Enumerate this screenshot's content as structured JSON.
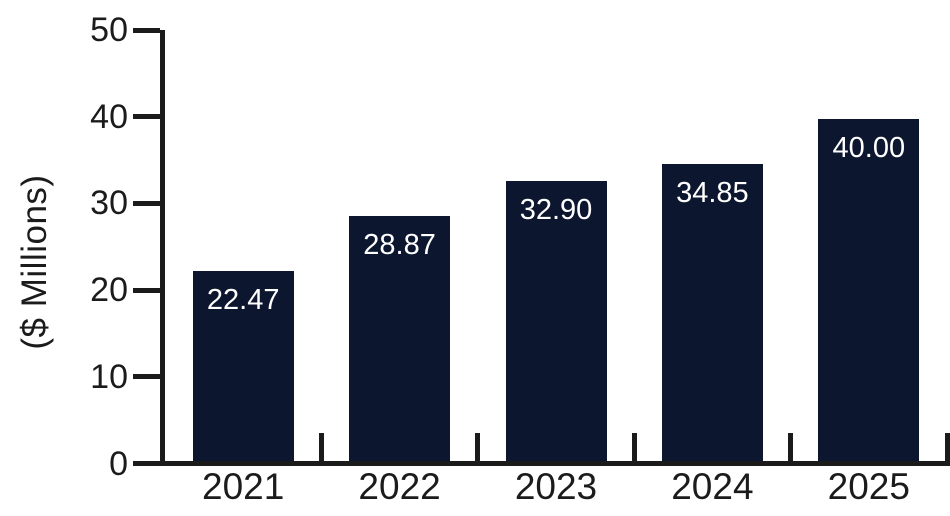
{
  "chart_data": {
    "type": "bar",
    "title": "",
    "categories": [
      "2021",
      "2022",
      "2023",
      "2024",
      "2025"
    ],
    "values": [
      22.47,
      28.87,
      32.9,
      34.85,
      40.0
    ],
    "value_labels": [
      "22.47",
      "28.87",
      "32.90",
      "34.85",
      "40.00"
    ],
    "xlabel": "",
    "ylabel": "($ Millions)",
    "ylim": [
      0,
      50
    ],
    "yticks": [
      0,
      10,
      20,
      30,
      40,
      50
    ],
    "grid": false,
    "legend": false,
    "bar_color": "#0c162e",
    "axis_color": "#1b1b1b",
    "value_label_color": "#ffffff",
    "background_color": "#ffffff"
  }
}
